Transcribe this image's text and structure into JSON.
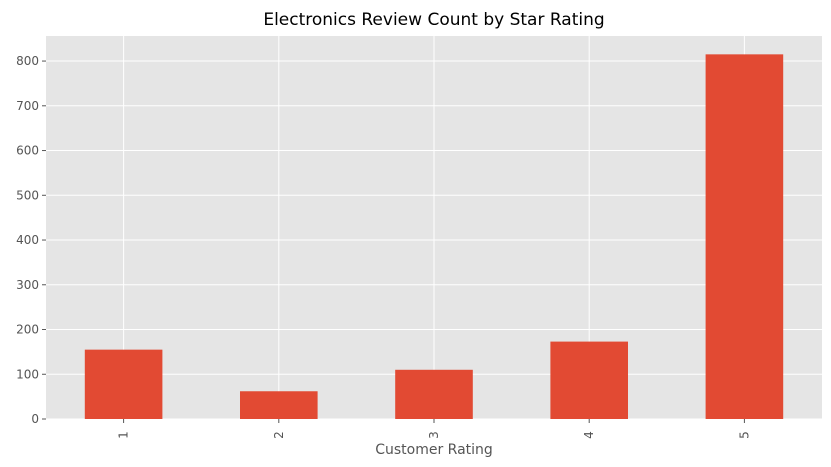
{
  "chart_data": {
    "type": "bar",
    "title": "Electronics Review Count by Star Rating",
    "xlabel": "Customer Rating",
    "ylabel": "",
    "categories": [
      "1",
      "2",
      "3",
      "4",
      "5"
    ],
    "values": [
      155,
      62,
      110,
      173,
      815
    ],
    "ylim": [
      0,
      856
    ],
    "yticks": [
      0,
      100,
      200,
      300,
      400,
      500,
      600,
      700,
      800
    ],
    "grid": true,
    "legend": "none",
    "bar_color": "#e24a33",
    "background_color": "#e5e5e5",
    "grid_color": "#ffffff"
  }
}
